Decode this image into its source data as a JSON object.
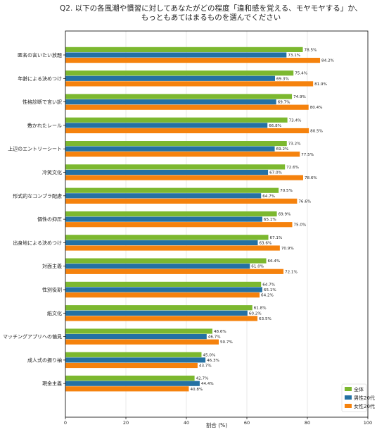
{
  "chart_data": {
    "type": "bar",
    "orientation": "horizontal",
    "title": [
      "Q2. 以下の各風潮や慣習に対してあなたがどの程度「違和感を覚える、モヤモヤする」か、",
      "もっともあてはまるものを選んでください"
    ],
    "xlabel": "割合 (%)",
    "ylabel": "",
    "xlim": [
      0,
      100
    ],
    "xticks": [
      "0",
      "20",
      "40",
      "60",
      "80",
      "100"
    ],
    "grid": "x",
    "legend_position": "bottom-right",
    "categories": [
      "匿名の言いたい放題",
      "年齢による決めつけ",
      "性格診断で言い訳",
      "敷かれたレール",
      "上辺のエントリーシート",
      "冷笑文化",
      "形式的なコンプラ配慮",
      "個性の抑圧",
      "出身地による決めつけ",
      "対面主義",
      "性別役割",
      "紙文化",
      "マッチングアプリへの偏見",
      "成人式の振り袖",
      "現金主義"
    ],
    "series": [
      {
        "name": "全体",
        "color": "#7cb82f",
        "values": [
          78.5,
          75.4,
          74.9,
          73.4,
          73.2,
          72.6,
          70.5,
          69.9,
          67.1,
          66.4,
          64.7,
          61.8,
          48.6,
          45.0,
          42.7
        ],
        "labels": [
          "78.5%",
          "75.4%",
          "74.9%",
          "73.4%",
          "73.2%",
          "72.6%",
          "70.5%",
          "69.9%",
          "67.1%",
          "66.4%",
          "64.7%",
          "61.8%",
          "48.6%",
          "45.0%",
          "42.7%"
        ]
      },
      {
        "name": "男性20代",
        "color": "#2471a3",
        "values": [
          73.1,
          69.3,
          69.7,
          66.8,
          69.2,
          67.0,
          64.7,
          65.1,
          63.6,
          61.0,
          65.1,
          60.2,
          46.7,
          46.3,
          44.4
        ],
        "labels": [
          "73.1%",
          "69.3%",
          "69.7%",
          "66.8%",
          "69.2%",
          "67.0%",
          "64.7%",
          "65.1%",
          "63.6%",
          "61.0%",
          "65.1%",
          "60.2%",
          "46.7%",
          "46.3%",
          "44.4%"
        ]
      },
      {
        "name": "女性20代",
        "color": "#f5820d",
        "values": [
          84.2,
          81.9,
          80.4,
          80.5,
          77.5,
          78.6,
          76.6,
          75.0,
          70.9,
          72.1,
          64.2,
          63.5,
          50.7,
          43.7,
          40.8
        ],
        "labels": [
          "84.2%",
          "81.9%",
          "80.4%",
          "80.5%",
          "77.5%",
          "78.6%",
          "76.6%",
          "75.0%",
          "70.9%",
          "72.1%",
          "64.2%",
          "63.5%",
          "50.7%",
          "43.7%",
          "40.8%"
        ]
      }
    ]
  }
}
